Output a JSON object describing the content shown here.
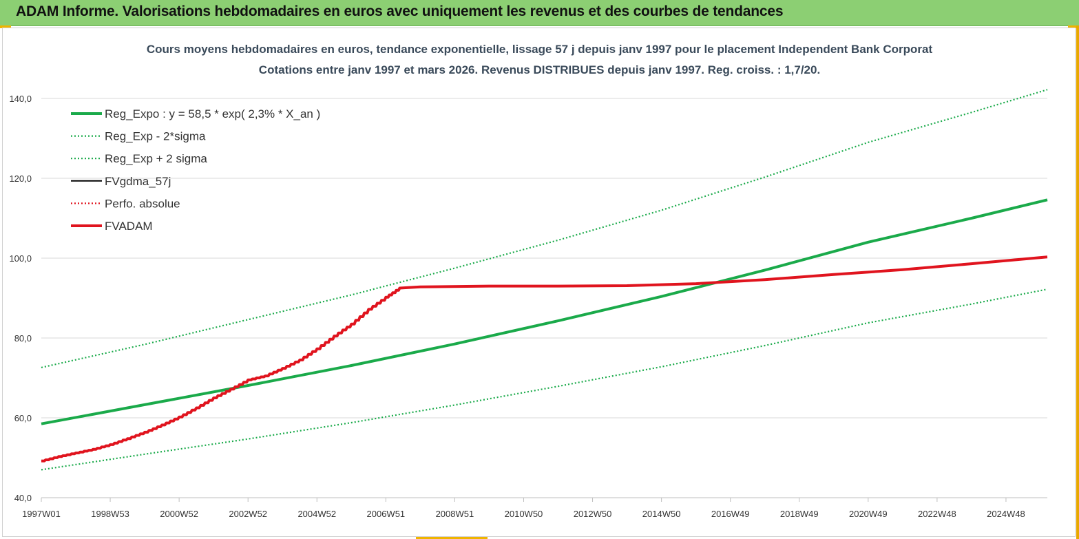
{
  "header": {
    "title": "ADAM Informe. Valorisations hebdomadaires en euros avec uniquement les revenus et des courbes de tendances"
  },
  "colors": {
    "header_bg": "#8ccf73",
    "green": "#1aaa4a",
    "red": "#e0141e",
    "black": "#000000",
    "grid": "#d9d9d9"
  },
  "chart_data": {
    "type": "line",
    "title_line1": "Cours moyens hebdomadaires en euros, tendance exponentielle, lissage 57 j depuis janv 1997  pour le placement Independent Bank Corporat",
    "title_line2": "Cotations entre janv 1997 et mars 2026. Revenus  DISTRIBUES depuis janv 1997.  Reg. croiss. : 1,7/20.",
    "ylim": [
      40,
      150
    ],
    "y_ticks": [
      "40,0",
      "60,0",
      "80,0",
      "100,0",
      "120,0",
      "140,0"
    ],
    "y_tick_values": [
      40,
      60,
      80,
      100,
      120,
      140
    ],
    "x_ticks": [
      "1997W01",
      "1998W53",
      "2000W52",
      "2002W52",
      "2004W52",
      "2006W51",
      "2008W51",
      "2010W50",
      "2012W50",
      "2014W50",
      "2016W49",
      "2018W49",
      "2020W49",
      "2022W48",
      "2024W48"
    ],
    "x_tick_years": [
      1997.0,
      1999.0,
      2001.0,
      2003.0,
      2005.0,
      2007.0,
      2009.0,
      2011.0,
      2013.0,
      2015.0,
      2017.0,
      2019.0,
      2021.0,
      2023.0,
      2025.0
    ],
    "xlim": [
      1997.0,
      2026.2
    ],
    "grid": "horizontal",
    "legend_position": "top-left",
    "legend": [
      {
        "name": "Reg_Expo : y = 58,5 * exp( 2,3% *  X_an )",
        "style": "solid-thick",
        "color": "#1aaa4a"
      },
      {
        "name": "Reg_Exp - 2*sigma",
        "style": "dotted",
        "color": "#1aaa4a"
      },
      {
        "name": "Reg_Exp + 2 sigma",
        "style": "dotted",
        "color": "#1aaa4a"
      },
      {
        "name": "FVgdma_57j",
        "style": "solid",
        "color": "#000000"
      },
      {
        "name": "Perfo. absolue",
        "style": "dotted",
        "color": "#e0141e"
      },
      {
        "name": "FVADAM",
        "style": "solid-thick",
        "color": "#e0141e"
      }
    ],
    "series": [
      {
        "name": "Reg_Expo : y = 58,5 * exp( 2,3% *  X_an )",
        "x": [
          1997.0,
          2000.0,
          2003.0,
          2006.0,
          2009.0,
          2012.0,
          2015.0,
          2018.0,
          2021.0,
          2024.0,
          2026.2
        ],
        "values": [
          58.5,
          63.3,
          68.1,
          73.1,
          78.5,
          84.3,
          90.4,
          97.0,
          104.0,
          110.0,
          114.6
        ]
      },
      {
        "name": "Reg_Exp - 2*sigma",
        "x": [
          1997.0,
          2000.0,
          2003.0,
          2006.0,
          2009.0,
          2012.0,
          2015.0,
          2018.0,
          2021.0,
          2024.0,
          2026.2
        ],
        "values": [
          47.0,
          50.9,
          54.7,
          58.8,
          63.2,
          67.9,
          72.8,
          78.1,
          83.8,
          88.5,
          92.2
        ]
      },
      {
        "name": "Reg_Exp + 2 sigma",
        "x": [
          1997.0,
          2000.0,
          2003.0,
          2006.0,
          2009.0,
          2012.0,
          2015.0,
          2018.0,
          2021.0,
          2024.0,
          2026.2
        ],
        "values": [
          72.6,
          78.4,
          84.6,
          90.8,
          97.5,
          104.5,
          112.0,
          120.3,
          129.0,
          136.5,
          142.2
        ]
      },
      {
        "name": "FVADAM",
        "x": [
          1997.0,
          1997.5,
          1998.0,
          1998.5,
          1999.0,
          1999.5,
          2000.0,
          2000.5,
          2001.0,
          2001.5,
          2002.0,
          2002.5,
          2003.0,
          2003.5,
          2004.0,
          2004.5,
          2005.0,
          2005.5,
          2006.0,
          2006.5,
          2007.0,
          2007.4,
          2008.0,
          2010.0,
          2012.0,
          2014.0,
          2016.0,
          2018.0,
          2020.0,
          2022.0,
          2024.0,
          2026.2
        ],
        "values": [
          49.2,
          50.3,
          51.2,
          52.1,
          53.3,
          54.8,
          56.4,
          58.2,
          60.2,
          62.5,
          65.0,
          67.2,
          69.5,
          70.5,
          72.4,
          74.5,
          77.3,
          80.5,
          83.5,
          87.2,
          90.2,
          92.5,
          92.8,
          93.0,
          93.0,
          93.1,
          93.6,
          94.6,
          95.9,
          97.1,
          98.6,
          100.3
        ]
      }
    ]
  }
}
